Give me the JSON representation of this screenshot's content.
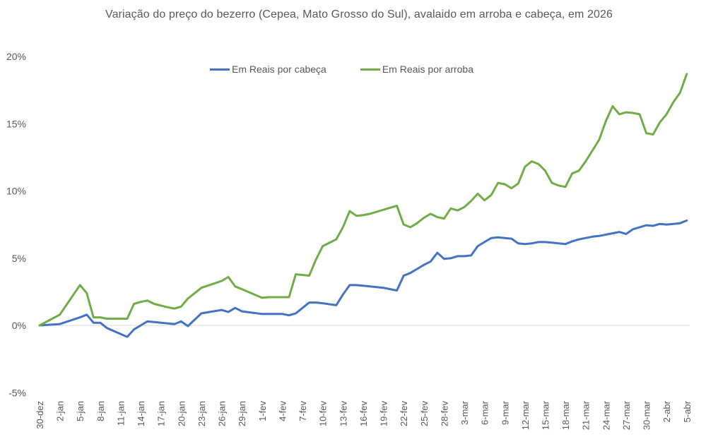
{
  "chart_data": {
    "type": "line",
    "title": "Variação do preço do bezerro (Cepea, Mato Grosso do Sul), avalaido em arroba e cabeça, em 2026",
    "xlabel": "",
    "ylabel": "",
    "ylim": [
      -5,
      20
    ],
    "yticks": [
      "-5%",
      "0%",
      "5%",
      "10%",
      "15%",
      "20%"
    ],
    "ytick_values": [
      -5,
      0,
      5,
      10,
      15,
      20
    ],
    "grid": false,
    "zero_line": true,
    "legend_position": "top",
    "x_tick_labels": [
      "30-dez",
      "2-jan",
      "5-jan",
      "8-jan",
      "11-jan",
      "14-jan",
      "17-jan",
      "20-jan",
      "23-jan",
      "26-jan",
      "29-jan",
      "1-fev",
      "4-fev",
      "7-fev",
      "10-fev",
      "13-fev",
      "16-fev",
      "19-fev",
      "22-fev",
      "25-fev",
      "28-fev",
      "3-mar",
      "6-mar",
      "9-mar",
      "12-mar",
      "15-mar",
      "18-mar",
      "21-mar",
      "24-mar",
      "27-mar",
      "30-mar",
      "2-abr",
      "5-abr"
    ],
    "x_unit": "days since 30-dez",
    "series": [
      {
        "name": "Em Reais por cabeça",
        "color": "#4472C4",
        "x": [
          0,
          3,
          6,
          7,
          8,
          9,
          10,
          13,
          14,
          15,
          16,
          17,
          19,
          20,
          21,
          22,
          24,
          27,
          28,
          29,
          30,
          33,
          34,
          35,
          36,
          37,
          38,
          40,
          41,
          42,
          44,
          45,
          46,
          47,
          48,
          49,
          50,
          51,
          52,
          53,
          54,
          55,
          56,
          57,
          58,
          59,
          60,
          61,
          62,
          63,
          64,
          65,
          66,
          67,
          68,
          69,
          70,
          71,
          72,
          73,
          74,
          75,
          76,
          77,
          78,
          79,
          80,
          81,
          82,
          83,
          84,
          85,
          86,
          87,
          88,
          89,
          90,
          91,
          92,
          93,
          94,
          95,
          96
        ],
        "values": [
          0,
          0.1,
          0.6,
          0.8,
          0.2,
          0.2,
          -0.2,
          -0.85,
          -0.3,
          0,
          0.3,
          0.25,
          0.15,
          0.1,
          0.3,
          -0.05,
          0.9,
          1.15,
          1.0,
          1.3,
          1.05,
          0.85,
          0.85,
          0.85,
          0.85,
          0.75,
          0.9,
          1.7,
          1.7,
          1.65,
          1.5,
          2.3,
          3.0,
          3.0,
          2.95,
          2.9,
          2.85,
          2.8,
          2.7,
          2.6,
          3.7,
          3.9,
          4.2,
          4.5,
          4.75,
          5.4,
          4.95,
          5.0,
          5.15,
          5.15,
          5.2,
          5.9,
          6.2,
          6.5,
          6.55,
          6.5,
          6.45,
          6.1,
          6.05,
          6.1,
          6.2,
          6.2,
          6.15,
          6.1,
          6.05,
          6.25,
          6.4,
          6.5,
          6.6,
          6.65,
          6.75,
          6.85,
          6.95,
          6.8,
          7.15,
          7.3,
          7.45,
          7.4,
          7.55,
          7.5,
          7.55,
          7.6,
          7.8
        ]
      },
      {
        "name": "Em Reais por arroba",
        "color": "#70AD47",
        "x": [
          0,
          3,
          6,
          7,
          8,
          9,
          10,
          13,
          14,
          15,
          16,
          17,
          19,
          20,
          21,
          22,
          24,
          27,
          28,
          29,
          30,
          33,
          34,
          35,
          36,
          37,
          38,
          40,
          41,
          42,
          44,
          45,
          46,
          47,
          48,
          49,
          50,
          51,
          52,
          53,
          54,
          55,
          56,
          57,
          58,
          59,
          60,
          61,
          62,
          63,
          64,
          65,
          66,
          67,
          68,
          69,
          70,
          71,
          72,
          73,
          74,
          75,
          76,
          77,
          78,
          79,
          80,
          81,
          82,
          83,
          84,
          85,
          86,
          87,
          88,
          89,
          90,
          91,
          92,
          93,
          94,
          95,
          96
        ],
        "values": [
          0,
          0.8,
          3.0,
          2.4,
          0.6,
          0.6,
          0.5,
          0.5,
          1.6,
          1.75,
          1.85,
          1.6,
          1.35,
          1.25,
          1.4,
          2.0,
          2.8,
          3.3,
          3.6,
          2.9,
          2.7,
          2.05,
          2.1,
          2.1,
          2.1,
          2.1,
          3.8,
          3.7,
          4.9,
          5.9,
          6.4,
          7.3,
          8.5,
          8.15,
          8.2,
          8.3,
          8.45,
          8.6,
          8.75,
          8.9,
          7.5,
          7.3,
          7.6,
          8.0,
          8.3,
          8.05,
          7.95,
          8.7,
          8.55,
          8.8,
          9.25,
          9.8,
          9.3,
          9.7,
          10.6,
          10.5,
          10.2,
          10.55,
          11.8,
          12.2,
          12.0,
          11.5,
          10.6,
          10.4,
          10.3,
          11.3,
          11.5,
          12.2,
          13.0,
          13.8,
          15.2,
          16.3,
          15.7,
          15.85,
          15.8,
          15.7,
          14.3,
          14.2,
          15.1,
          15.7,
          16.6,
          17.3,
          18.7
        ]
      }
    ]
  },
  "legend": {
    "items": [
      {
        "label": "Em Reais por cabeça",
        "color": "#4472C4"
      },
      {
        "label": "Em Reais por arroba",
        "color": "#70AD47"
      }
    ]
  },
  "colors": {
    "text": "#595959",
    "axis_line": "#D9D9D9",
    "background": "#FFFFFF"
  }
}
